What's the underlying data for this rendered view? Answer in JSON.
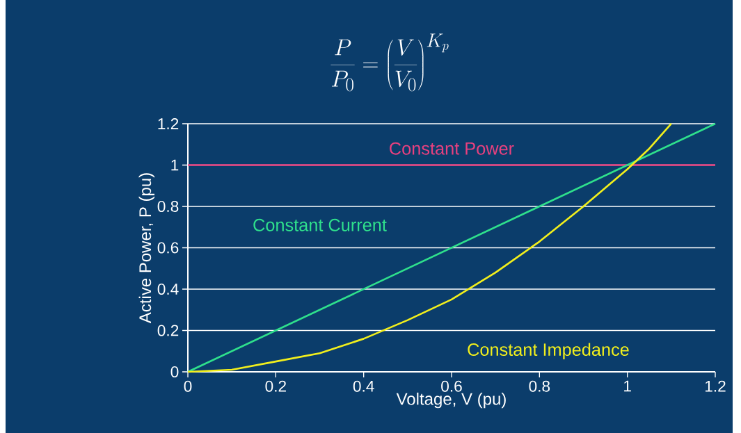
{
  "chart_data": {
    "type": "line",
    "title": "\\frac{P}{P_0} = \\left(\\frac{V}{V_0}\\right)^{K_p}",
    "xlabel": "Voltage, V (pu)",
    "ylabel": "Active Power, P (pu)",
    "xlim": [
      0,
      1.2
    ],
    "ylim": [
      0,
      1.2
    ],
    "xticks": [
      0,
      0.2,
      0.4,
      0.6,
      0.8,
      1,
      1.2
    ],
    "yticks": [
      0,
      0.2,
      0.4,
      0.6,
      0.8,
      1,
      1.2
    ],
    "grid": "y",
    "legend": false,
    "marker": "none",
    "line_style": "solid",
    "series": [
      {
        "name": "Constant Power",
        "color": "#e8407f",
        "x": [
          0,
          1.2
        ],
        "values": [
          1,
          1
        ]
      },
      {
        "name": "Constant Current",
        "color": "#2fe08c",
        "x": [
          0,
          1.2
        ],
        "values": [
          0,
          1.2
        ]
      },
      {
        "name": "Constant Impedance",
        "color": "#f2ef1c",
        "x": [
          0,
          0.1,
          0.2,
          0.3,
          0.4,
          0.5,
          0.6,
          0.7,
          0.8,
          0.9,
          1,
          1.05,
          1.1
        ],
        "values": [
          0,
          0.01,
          0.05,
          0.09,
          0.16,
          0.25,
          0.35,
          0.48,
          0.63,
          0.8,
          0.98,
          1.08,
          1.2
        ]
      }
    ]
  }
}
